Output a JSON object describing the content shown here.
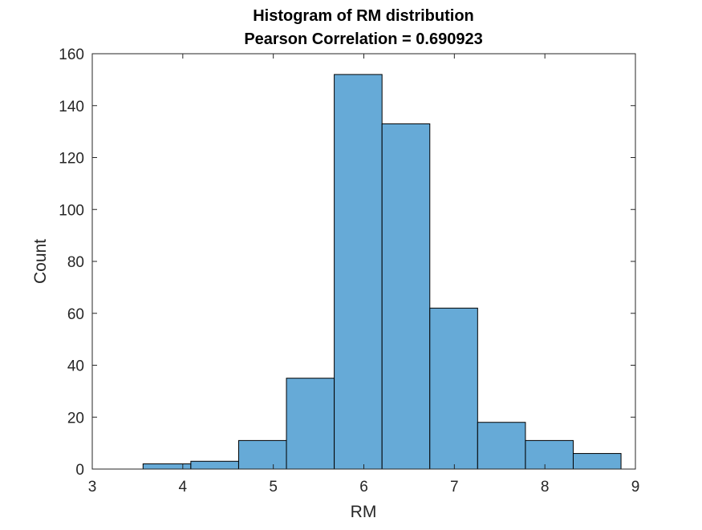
{
  "chart_data": {
    "type": "bar",
    "subtype": "histogram",
    "title": "Histogram of RM distribution",
    "subtitle": "Pearson Correlation = 0.690923",
    "xlabel": "RM",
    "ylabel": "Count",
    "xlim": [
      3,
      9
    ],
    "ylim": [
      0,
      160
    ],
    "xticks": [
      "3",
      "4",
      "5",
      "6",
      "7",
      "8",
      "9"
    ],
    "yticks": [
      "0",
      "20",
      "40",
      "60",
      "80",
      "100",
      "120",
      "140",
      "160"
    ],
    "bins": [
      {
        "x0": 3.561,
        "x1": 4.089,
        "count": 2
      },
      {
        "x0": 4.089,
        "x1": 4.617,
        "count": 3
      },
      {
        "x0": 4.617,
        "x1": 5.145,
        "count": 11
      },
      {
        "x0": 5.145,
        "x1": 5.673,
        "count": 35
      },
      {
        "x0": 5.673,
        "x1": 6.201,
        "count": 152
      },
      {
        "x0": 6.201,
        "x1": 6.729,
        "count": 133
      },
      {
        "x0": 6.729,
        "x1": 7.257,
        "count": 62
      },
      {
        "x0": 7.257,
        "x1": 7.785,
        "count": 18
      },
      {
        "x0": 7.785,
        "x1": 8.313,
        "count": 11
      },
      {
        "x0": 8.313,
        "x1": 8.841,
        "count": 6
      }
    ],
    "grid": false,
    "bar_color": "#66aad7",
    "bar_edge_color": "#000000"
  }
}
